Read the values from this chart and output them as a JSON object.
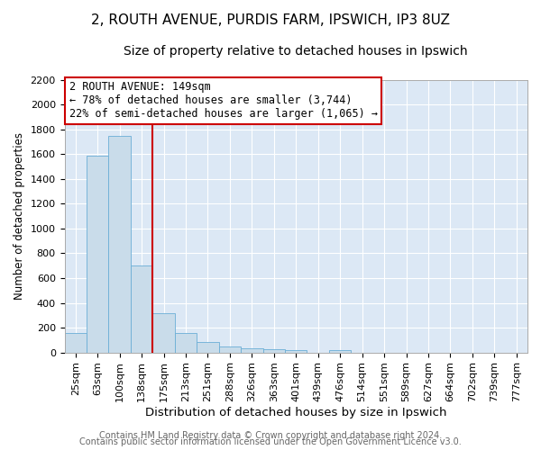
{
  "title1": "2, ROUTH AVENUE, PURDIS FARM, IPSWICH, IP3 8UZ",
  "title2": "Size of property relative to detached houses in Ipswich",
  "xlabel": "Distribution of detached houses by size in Ipswich",
  "ylabel": "Number of detached properties",
  "categories": [
    "25sqm",
    "63sqm",
    "100sqm",
    "138sqm",
    "175sqm",
    "213sqm",
    "251sqm",
    "288sqm",
    "326sqm",
    "363sqm",
    "401sqm",
    "439sqm",
    "476sqm",
    "514sqm",
    "551sqm",
    "589sqm",
    "627sqm",
    "664sqm",
    "702sqm",
    "739sqm",
    "777sqm"
  ],
  "values": [
    160,
    1590,
    1750,
    700,
    315,
    155,
    85,
    50,
    30,
    25,
    20,
    0,
    20,
    0,
    0,
    0,
    0,
    0,
    0,
    0,
    0
  ],
  "bar_color": "#c9dcea",
  "bar_edge_color": "#6aaed6",
  "vline_color": "#cc0000",
  "vline_pos": 3.5,
  "annotation_line0": "2 ROUTH AVENUE: 149sqm",
  "annotation_line1": "← 78% of detached houses are smaller (3,744)",
  "annotation_line2": "22% of semi-detached houses are larger (1,065) →",
  "annotation_box_color": "#ffffff",
  "annotation_box_edge": "#cc0000",
  "ylim": [
    0,
    2200
  ],
  "yticks": [
    0,
    200,
    400,
    600,
    800,
    1000,
    1200,
    1400,
    1600,
    1800,
    2000,
    2200
  ],
  "footer1": "Contains HM Land Registry data © Crown copyright and database right 2024.",
  "footer2": "Contains public sector information licensed under the Open Government Licence v3.0.",
  "fig_bg_color": "#ffffff",
  "plot_bg_color": "#dce8f5",
  "grid_color": "#ffffff",
  "title1_fontsize": 11,
  "title2_fontsize": 10,
  "xlabel_fontsize": 9.5,
  "ylabel_fontsize": 8.5,
  "tick_fontsize": 8,
  "footer_fontsize": 7,
  "ann_fontsize": 8.5
}
